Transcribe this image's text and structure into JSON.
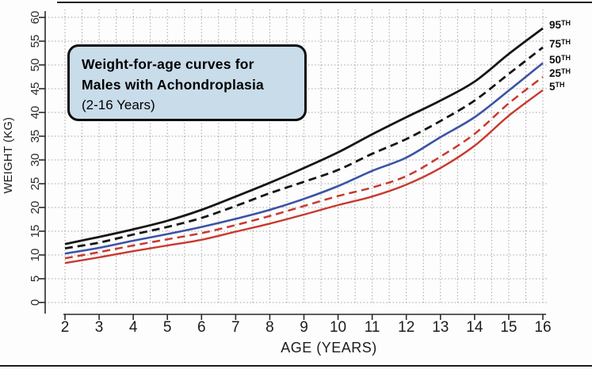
{
  "title_box": {
    "line1": "Weight-for-age curves for",
    "line2": "Males with Achondroplasia",
    "line3": "(2-16 Years)"
  },
  "colors": {
    "black_curve": "#161616",
    "blue_curve": "#3b53a5",
    "red_curve": "#c8392e",
    "grid": "#979797",
    "axis": "#2a2a2a",
    "title_box_fill": "#c9dcea",
    "title_box_border": "#0e0e0e",
    "background": "#fdfdfd"
  },
  "chart_data": {
    "type": "line",
    "title": "Weight-for-age curves for Males with Achondroplasia (2-16 Years)",
    "xlabel": "AGE (YEARS)",
    "ylabel": "WEIGHT (KG)",
    "xlim": [
      2,
      16
    ],
    "ylim": [
      0,
      60
    ],
    "x_ticks": [
      2,
      3,
      4,
      5,
      6,
      7,
      8,
      9,
      10,
      11,
      12,
      13,
      14,
      15,
      16
    ],
    "y_ticks": [
      0,
      5,
      10,
      15,
      20,
      25,
      30,
      35,
      40,
      45,
      50,
      55,
      60
    ],
    "grid": {
      "on": true,
      "style": "dotted",
      "x_step": 0.5,
      "y_step": 5
    },
    "legend_position": "right-end-labels",
    "x": [
      2,
      3,
      4,
      5,
      6,
      7,
      8,
      9,
      10,
      11,
      12,
      13,
      14,
      15,
      16
    ],
    "series": [
      {
        "name": "95TH",
        "color": "#161616",
        "style": "solid",
        "width": 2.8,
        "values": [
          12.3,
          13.8,
          15.4,
          17.2,
          19.5,
          22.3,
          25.2,
          28.3,
          31.6,
          35.4,
          39.0,
          42.5,
          46.5,
          52.3,
          57.7
        ]
      },
      {
        "name": "75TH",
        "color": "#161616",
        "style": "dashed",
        "width": 2.8,
        "values": [
          11.4,
          12.6,
          14.3,
          15.9,
          17.8,
          20.3,
          23.0,
          25.4,
          27.9,
          31.3,
          34.4,
          38.2,
          42.5,
          48.1,
          53.7
        ]
      },
      {
        "name": "50TH",
        "color": "#3b53a5",
        "style": "solid",
        "width": 2.6,
        "values": [
          10.3,
          11.5,
          13.0,
          14.4,
          15.9,
          17.6,
          19.5,
          21.8,
          24.5,
          27.7,
          30.5,
          34.8,
          39.0,
          44.6,
          50.4
        ]
      },
      {
        "name": "25TH",
        "color": "#c8392e",
        "style": "dashed",
        "width": 2.5,
        "values": [
          9.3,
          10.6,
          12.0,
          13.3,
          14.6,
          16.3,
          18.2,
          20.3,
          22.4,
          24.2,
          26.6,
          30.7,
          35.5,
          41.9,
          47.5
        ]
      },
      {
        "name": "5TH",
        "color": "#c8392e",
        "style": "solid",
        "width": 2.4,
        "values": [
          8.3,
          9.5,
          10.8,
          12.0,
          13.2,
          14.9,
          16.6,
          18.5,
          20.5,
          22.3,
          24.8,
          28.3,
          33.0,
          39.3,
          44.7
        ]
      }
    ]
  }
}
